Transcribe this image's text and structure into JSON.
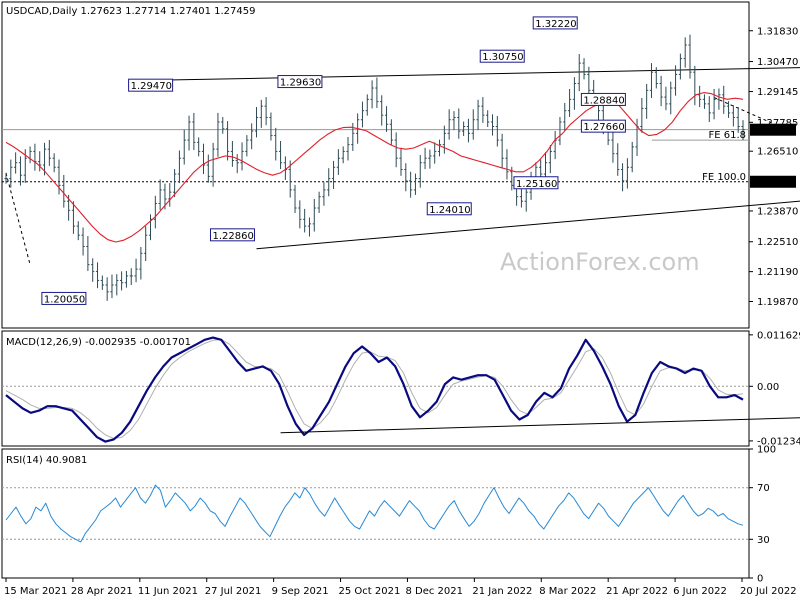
{
  "chart_data": {
    "type": "candlestick",
    "watermark": "ActionForex.com",
    "price_panel": {
      "title": "USDCAD,Daily  1.27623 1.27714 1.27401 1.27459",
      "ylim": [
        1.187,
        1.331
      ],
      "y_ticks": [
        "1.31830",
        "1.30470",
        "1.29145",
        "1.27785",
        "1.26510",
        "1.23870",
        "1.22510",
        "1.21190",
        "1.19870"
      ],
      "current_price": "1.27459",
      "callouts": [
        {
          "text": "1.32220",
          "x": 136,
          "y": 1.3222
        },
        {
          "text": "1.30750",
          "x": 123,
          "y": 1.3075
        },
        {
          "text": "1.29630",
          "x": 75,
          "y": 1.2963
        },
        {
          "text": "1.29470",
          "x": 40,
          "y": 1.2947
        },
        {
          "text": "1.28840",
          "x": 148,
          "y": 1.2884
        },
        {
          "text": "1.27660",
          "x": 148,
          "y": 1.2766
        },
        {
          "text": "1.25160",
          "x": 132,
          "y": 1.2516
        },
        {
          "text": "1.24010",
          "x": 111,
          "y": 1.2401
        },
        {
          "text": "1.22860",
          "x": 59,
          "y": 1.2286
        },
        {
          "text": "1.20050",
          "x": 19,
          "y": 1.2005
        }
      ],
      "fib_labels": [
        {
          "text": "FE 61.8",
          "y": 1.27
        },
        {
          "text": "FE 100.0",
          "y": 1.2516
        }
      ],
      "fib_value": "1.25160",
      "series": [
        {
          "name": "close",
          "values": [
            1.253,
            1.258,
            1.26,
            1.2545,
            1.262,
            1.265,
            1.2605,
            1.259,
            1.266,
            1.262,
            1.258,
            1.25,
            1.243,
            1.239,
            1.232,
            1.228,
            1.223,
            1.215,
            1.212,
            1.208,
            1.206,
            1.203,
            1.206,
            1.208,
            1.207,
            1.21,
            1.21,
            1.213,
            1.22,
            1.228,
            1.235,
            1.242,
            1.248,
            1.244,
            1.247,
            1.255,
            1.262,
            1.27,
            1.278,
            1.269,
            1.265,
            1.259,
            1.254,
            1.266,
            1.278,
            1.275,
            1.265,
            1.261,
            1.26,
            1.265,
            1.27,
            1.274,
            1.28,
            1.285,
            1.28,
            1.272,
            1.265,
            1.26,
            1.257,
            1.248,
            1.24,
            1.235,
            1.232,
            1.233,
            1.24,
            1.245,
            1.248,
            1.253,
            1.258,
            1.262,
            1.265,
            1.268,
            1.273,
            1.279,
            1.283,
            1.288,
            1.293,
            1.287,
            1.281,
            1.277,
            1.27,
            1.262,
            1.257,
            1.252,
            1.248,
            1.253,
            1.26,
            1.262,
            1.263,
            1.265,
            1.268,
            1.273,
            1.279,
            1.28,
            1.274,
            1.276,
            1.273,
            1.279,
            1.285,
            1.281,
            1.278,
            1.276,
            1.27,
            1.262,
            1.256,
            1.25,
            1.245,
            1.243,
            1.247,
            1.252,
            1.258,
            1.255,
            1.26,
            1.265,
            1.27,
            1.278,
            1.283,
            1.288,
            1.295,
            1.304,
            1.299,
            1.292,
            1.288,
            1.283,
            1.276,
            1.27,
            1.264,
            1.257,
            1.252,
            1.258,
            1.267,
            1.276,
            1.284,
            1.292,
            1.3,
            1.295,
            1.289,
            1.286,
            1.293,
            1.299,
            1.306,
            1.312,
            1.3,
            1.29,
            1.288,
            1.286,
            1.282,
            1.288,
            1.29,
            1.285,
            1.282,
            1.28,
            1.276,
            1.2746
          ]
        },
        {
          "name": "ma55",
          "values": [
            1.269,
            1.267,
            1.2645,
            1.262,
            1.2595,
            1.256,
            1.252,
            1.248,
            1.244,
            1.24,
            1.236,
            1.232,
            1.2285,
            1.226,
            1.225,
            1.2258,
            1.2275,
            1.23,
            1.233,
            1.236,
            1.24,
            1.244,
            1.248,
            1.252,
            1.256,
            1.259,
            1.261,
            1.262,
            1.263,
            1.2625,
            1.261,
            1.259,
            1.257,
            1.2555,
            1.2545,
            1.2555,
            1.258,
            1.261,
            1.264,
            1.267,
            1.27,
            1.2725,
            1.2745,
            1.2755,
            1.2757,
            1.275,
            1.274,
            1.272,
            1.27,
            1.268,
            1.2665,
            1.266,
            1.2665,
            1.268,
            1.2695,
            1.268,
            1.2665,
            1.265,
            1.263,
            1.262,
            1.261,
            1.26,
            1.259,
            1.258,
            1.257,
            1.256,
            1.256,
            1.258,
            1.261,
            1.265,
            1.27,
            1.273,
            1.277,
            1.28,
            1.283,
            1.285,
            1.286,
            1.287,
            1.286,
            1.282,
            1.278,
            1.274,
            1.272,
            1.2725,
            1.2745,
            1.278,
            1.283,
            1.287,
            1.29,
            1.291,
            1.2905,
            1.289,
            1.288,
            1.2885,
            1.288
          ]
        }
      ],
      "trendlines": [
        {
          "x": [
            0,
            5
          ],
          "y": [
            1.2555,
            1.215
          ],
          "style": "dashed"
        },
        {
          "x": [
            28,
            165
          ],
          "y": [
            1.2963,
            1.302
          ],
          "style": "solid"
        },
        {
          "x": [
            52,
            170
          ],
          "y": [
            1.222,
            1.244
          ],
          "style": "solid"
        },
        {
          "x": [
            166,
            172
          ],
          "y": [
            1.3222,
            1.298
          ],
          "style": "dashed"
        },
        {
          "x": [
            147,
            160
          ],
          "y": [
            1.2888,
            1.2766
          ],
          "style": "dashed"
        },
        {
          "x": [
            170,
            175
          ],
          "y": [
            1.297,
            1.2745
          ],
          "style": "dashed"
        }
      ],
      "hlines": [
        {
          "y": 1.2516,
          "style": "dotted"
        },
        {
          "y": 1.2746,
          "style": "solid-gray"
        },
        {
          "y": 1.27,
          "style": "solid-gray",
          "from": 0.87
        }
      ]
    },
    "macd_panel": {
      "title": "MACD(12,26,9) -0.002935 -0.001701",
      "ylim": [
        -0.0135,
        0.0125
      ],
      "y_ticks": [
        "0.011629",
        "0.00",
        "-0.012348"
      ],
      "series": [
        {
          "name": "macd",
          "values": [
            -0.002,
            -0.0035,
            -0.005,
            -0.006,
            -0.0055,
            -0.0045,
            -0.0045,
            -0.005,
            -0.0055,
            -0.0075,
            -0.0095,
            -0.0115,
            -0.0125,
            -0.012,
            -0.0105,
            -0.008,
            -0.0045,
            -0.001,
            0.002,
            0.0045,
            0.0065,
            0.0075,
            0.0085,
            0.0095,
            0.0105,
            0.011,
            0.0105,
            0.008,
            0.0055,
            0.0035,
            0.004,
            0.0045,
            0.0035,
            0.0005,
            -0.0045,
            -0.0085,
            -0.011,
            -0.0095,
            -0.0065,
            -0.0035,
            0.0005,
            0.0045,
            0.0075,
            0.009,
            0.0075,
            0.0055,
            0.0065,
            0.0045,
            0.0005,
            -0.0045,
            -0.007,
            -0.0055,
            -0.0035,
            0.0005,
            0.002,
            0.0015,
            0.002,
            0.0025,
            0.0025,
            0.0015,
            -0.002,
            -0.0055,
            -0.0075,
            -0.0065,
            -0.0035,
            -0.0015,
            -0.0025,
            -0.0005,
            0.004,
            0.007,
            0.0105,
            0.008,
            0.0045,
            0.0005,
            -0.0045,
            -0.008,
            -0.0065,
            -0.0015,
            0.003,
            0.0055,
            0.0045,
            0.004,
            0.003,
            0.004,
            0.0035,
            0.0,
            -0.0025,
            -0.0025,
            -0.002,
            -0.003
          ]
        },
        {
          "name": "signal",
          "values": [
            -0.001,
            -0.002,
            -0.003,
            -0.0042,
            -0.005,
            -0.005,
            -0.0048,
            -0.0048,
            -0.005,
            -0.006,
            -0.0075,
            -0.0095,
            -0.011,
            -0.0118,
            -0.0115,
            -0.01,
            -0.0075,
            -0.004,
            -0.0005,
            0.0025,
            0.005,
            0.0065,
            0.0078,
            0.0088,
            0.0097,
            0.0104,
            0.0106,
            0.0095,
            0.0075,
            0.0055,
            0.0045,
            0.0043,
            0.004,
            0.0025,
            -0.0012,
            -0.0052,
            -0.0085,
            -0.0095,
            -0.0082,
            -0.006,
            -0.0025,
            0.0015,
            0.005,
            0.0075,
            0.0078,
            0.0068,
            0.0066,
            0.0058,
            0.003,
            -0.0015,
            -0.005,
            -0.006,
            -0.0048,
            -0.002,
            0.0005,
            0.0012,
            0.0016,
            0.0021,
            0.0024,
            0.002,
            0.0,
            -0.003,
            -0.0055,
            -0.0063,
            -0.0048,
            -0.003,
            -0.0027,
            -0.0015,
            0.0015,
            0.0045,
            0.0078,
            0.0085,
            0.0065,
            0.003,
            -0.0015,
            -0.0055,
            -0.0065,
            -0.004,
            0.0,
            0.0035,
            0.0042,
            0.0041,
            0.0035,
            0.0037,
            0.0036,
            0.0018,
            -0.0008,
            -0.0018,
            -0.0019,
            -0.0017
          ]
        }
      ],
      "trendlines": [
        {
          "x": [
            57,
            175
          ],
          "y": [
            -0.0105,
            -0.0068
          ],
          "style": "solid"
        }
      ]
    },
    "rsi_panel": {
      "title": "RSI(14) 40.9081",
      "ylim": [
        0,
        100
      ],
      "y_ticks": [
        "100",
        "70",
        "30",
        "0"
      ],
      "levels": [
        70,
        30
      ],
      "series": [
        {
          "name": "rsi",
          "values": [
            45,
            50,
            55,
            48,
            42,
            46,
            55,
            52,
            58,
            48,
            42,
            38,
            35,
            32,
            30,
            28,
            35,
            40,
            45,
            52,
            55,
            58,
            62,
            55,
            60,
            65,
            70,
            62,
            58,
            64,
            72,
            68,
            55,
            60,
            66,
            62,
            58,
            52,
            56,
            62,
            58,
            52,
            50,
            44,
            40,
            48,
            55,
            62,
            58,
            52,
            46,
            40,
            36,
            32,
            40,
            48,
            55,
            60,
            66,
            62,
            70,
            65,
            58,
            52,
            48,
            55,
            62,
            56,
            50,
            44,
            40,
            38,
            45,
            52,
            48,
            55,
            60,
            56,
            52,
            48,
            54,
            60,
            56,
            52,
            45,
            40,
            38,
            44,
            50,
            56,
            60,
            52,
            46,
            40,
            44,
            50,
            58,
            64,
            70,
            62,
            55,
            50,
            56,
            62,
            58,
            52,
            48,
            42,
            38,
            44,
            50,
            56,
            60,
            66,
            62,
            56,
            50,
            46,
            52,
            58,
            54,
            48,
            44,
            40,
            46,
            52,
            58,
            62,
            66,
            70,
            64,
            58,
            52,
            48,
            54,
            60,
            64,
            58,
            52,
            48,
            50,
            54,
            52,
            48,
            50,
            46,
            44,
            42,
            40.9
          ]
        }
      ]
    },
    "x_axis": {
      "labels": [
        "15 Mar 2021",
        "28 Apr 2021",
        "11 Jun 2021",
        "27 Jul 2021",
        "9 Sep 2021",
        "25 Oct 2021",
        "8 Dec 2021",
        "21 Jan 2022",
        "8 Mar 2022",
        "21 Apr 2022",
        "6 Jun 2022",
        "20 Jul 2022"
      ]
    },
    "colors": {
      "candle": "#2e4a55",
      "ma": "#e0202a",
      "macd": "#0a0a80",
      "signal": "#b0b0b0",
      "rsi": "#2a8ad4",
      "callout_border": "#1a1a8a",
      "watermark": "#c9c9c9"
    }
  }
}
